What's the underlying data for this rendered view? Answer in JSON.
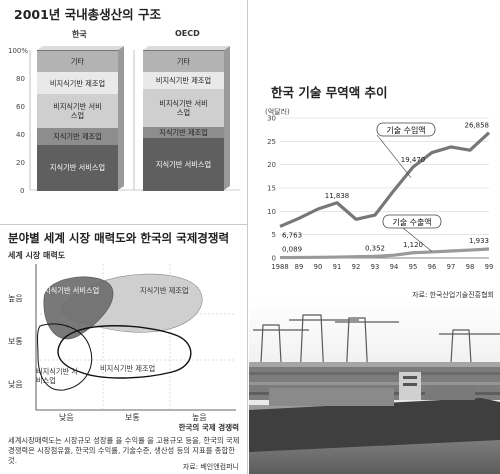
{
  "gdp": {
    "title": "2001년 국내총생산의 구조",
    "pct_ticks": [
      "100%",
      "80",
      "60",
      "40",
      "20",
      "0"
    ],
    "segment_colors": [
      "#5f5f5f",
      "#8d8d8d",
      "#cfcfcf",
      "#e9e9e9",
      "#b3b3b3"
    ],
    "chart_data": [
      {
        "type": "bar",
        "title": "한국",
        "categories": [
          "지식기반 서비스업",
          "지식기반 제조업",
          "비지식기반 서비스업",
          "비지식기반 제조업",
          "기타"
        ],
        "values": [
          33,
          12,
          24,
          16,
          15
        ],
        "ylim": [
          0,
          100
        ]
      },
      {
        "type": "bar",
        "title": "OECD",
        "categories": [
          "지식기반 서비스업",
          "지식기반 제조업",
          "비지식기반 서비스업",
          "비지식기반 제조업",
          "기타"
        ],
        "values": [
          38,
          8,
          27,
          12,
          15
        ],
        "ylim": [
          0,
          100
        ]
      }
    ]
  },
  "trade": {
    "chart_data": {
      "type": "line",
      "title": "한국 기술 무역액 추이",
      "ylabel": "(억달러)",
      "x": [
        "1988",
        "89",
        "90",
        "91",
        "92",
        "93",
        "94",
        "95",
        "96",
        "97",
        "98",
        "99"
      ],
      "ylim": [
        0,
        30
      ],
      "yticks": [
        "30",
        "25",
        "20",
        "15",
        "10",
        "5",
        "0"
      ],
      "series": [
        {
          "name": "기술 수입액",
          "values": [
            6.763,
            8.5,
            10.5,
            11.838,
            8.3,
            9.2,
            14.5,
            19.47,
            22.6,
            23.8,
            23.1,
            26.858
          ],
          "labels": [
            {
              "index": 0,
              "text": "6,763"
            },
            {
              "index": 3,
              "text": "11,838"
            },
            {
              "index": 7,
              "text": "19,470"
            },
            {
              "index": 11,
              "text": "26,858"
            }
          ]
        },
        {
          "name": "기술 수출액",
          "values": [
            0.089,
            0.12,
            0.15,
            0.2,
            0.28,
            0.352,
            0.6,
            1.12,
            1.3,
            1.5,
            1.7,
            1.933
          ],
          "labels": [
            {
              "index": 0,
              "text": "0,089"
            },
            {
              "index": 5,
              "text": "0,352"
            },
            {
              "index": 7,
              "text": "1,120"
            },
            {
              "index": 11,
              "text": "1,933"
            }
          ]
        }
      ],
      "grid": true
    },
    "source": "자료: 한국산업기술진흥협회"
  },
  "market": {
    "chart_data": {
      "type": "scatter",
      "title": "분야별 세계 시장 매력도와 한국의 국제경쟁력",
      "ylabel": "세계 시장 매력도",
      "xlabel": "한국의 국제 경쟁력",
      "y_levels": [
        "높음",
        "보통",
        "낮음"
      ],
      "x_levels": [
        "낮음",
        "보통",
        "높음"
      ],
      "regions": [
        {
          "name": "지식기반 서비스업",
          "x": 0.6,
          "y": 2.6
        },
        {
          "name": "지식기반 제조업",
          "x": 1.9,
          "y": 2.6
        },
        {
          "name": "비지식기반 제조업",
          "x": 1.6,
          "y": 1.5
        },
        {
          "name": "비지식기반 서비스업",
          "x": 0.2,
          "y": 1.4
        }
      ]
    },
    "note": "세계시장매력도는 시장규모 성장률 을 수익률 을 고용규모 등을, 한국의 국제경쟁력은 시장점유율, 한국의 수익률, 기술수준, 생산성 등의 지표를 종합한 것.",
    "source": "자료: 베인앤컴퍼니"
  }
}
